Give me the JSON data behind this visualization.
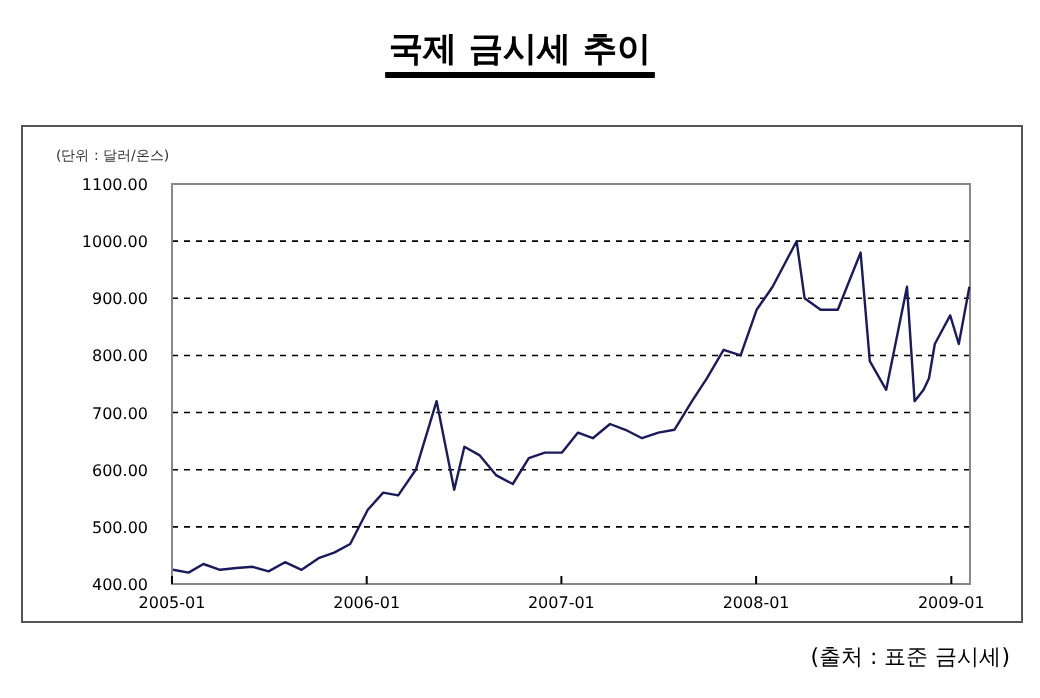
{
  "chart_data": {
    "type": "line",
    "title": "국제 금시세 추이",
    "ylabel": "(단위 : 달러/온스)",
    "annotations": [
      "(출처 : 표준 금시세)"
    ],
    "x": [
      "2005-01-03",
      "2005-02-01",
      "2005-03-01",
      "2005-04-01",
      "2005-05-02",
      "2005-06-01",
      "2005-07-01",
      "2005-08-01",
      "2005-09-01",
      "2005-10-03",
      "2005-11-01",
      "2005-12-01",
      "2006-01-03",
      "2006-02-01",
      "2006-03-01",
      "2006-04-03",
      "2006-05-12",
      "2006-06-14",
      "2006-07-03",
      "2006-08-01",
      "2006-09-01",
      "2006-10-02",
      "2006-11-01",
      "2006-12-01",
      "2007-01-02",
      "2007-02-01",
      "2007-03-01",
      "2007-04-02",
      "2007-05-01",
      "2007-06-01",
      "2007-07-02",
      "2007-08-01",
      "2007-09-03",
      "2007-10-01",
      "2007-11-01",
      "2007-12-03",
      "2008-01-02",
      "2008-02-01",
      "2008-03-17",
      "2008-04-01",
      "2008-05-01",
      "2008-06-02",
      "2008-07-15",
      "2008-08-01",
      "2008-09-01",
      "2008-10-10",
      "2008-10-24",
      "2008-11-10",
      "2008-11-20",
      "2008-12-01",
      "2008-12-30",
      "2009-01-15",
      "2009-02-04"
    ],
    "series": [
      {
        "color": "#1a1a5e",
        "values": [
          425,
          420,
          435,
          425,
          428,
          430,
          422,
          438,
          425,
          445,
          455,
          470,
          530,
          560,
          555,
          600,
          720,
          565,
          640,
          625,
          590,
          575,
          620,
          630,
          630,
          665,
          655,
          680,
          670,
          655,
          665,
          670,
          720,
          760,
          810,
          800,
          880,
          920,
          1000,
          900,
          880,
          880,
          980,
          790,
          740,
          920,
          720,
          740,
          760,
          820,
          870,
          820,
          920
        ]
      }
    ],
    "xlim": [
      "2005-01-01",
      "2009-02-05"
    ],
    "xticks": [
      {
        "value": "2005-01-01",
        "label": "2005-01"
      },
      {
        "value": "2006-01-01",
        "label": "2006-01"
      },
      {
        "value": "2007-01-01",
        "label": "2007-01"
      },
      {
        "value": "2008-01-01",
        "label": "2008-01"
      },
      {
        "value": "2009-01-01",
        "label": "2009-01"
      }
    ],
    "ylim": [
      400,
      1100
    ],
    "yticks": [
      {
        "value": 400,
        "label": "400.00"
      },
      {
        "value": 500,
        "label": "500.00"
      },
      {
        "value": 600,
        "label": "600.00"
      },
      {
        "value": 700,
        "label": "700.00"
      },
      {
        "value": 800,
        "label": "800.00"
      },
      {
        "value": 900,
        "label": "900.00"
      },
      {
        "value": 1000,
        "label": "1000.00"
      },
      {
        "value": 1100,
        "label": "1100.00"
      }
    ],
    "grid": "y",
    "line_style": "solid",
    "marker": "none"
  }
}
